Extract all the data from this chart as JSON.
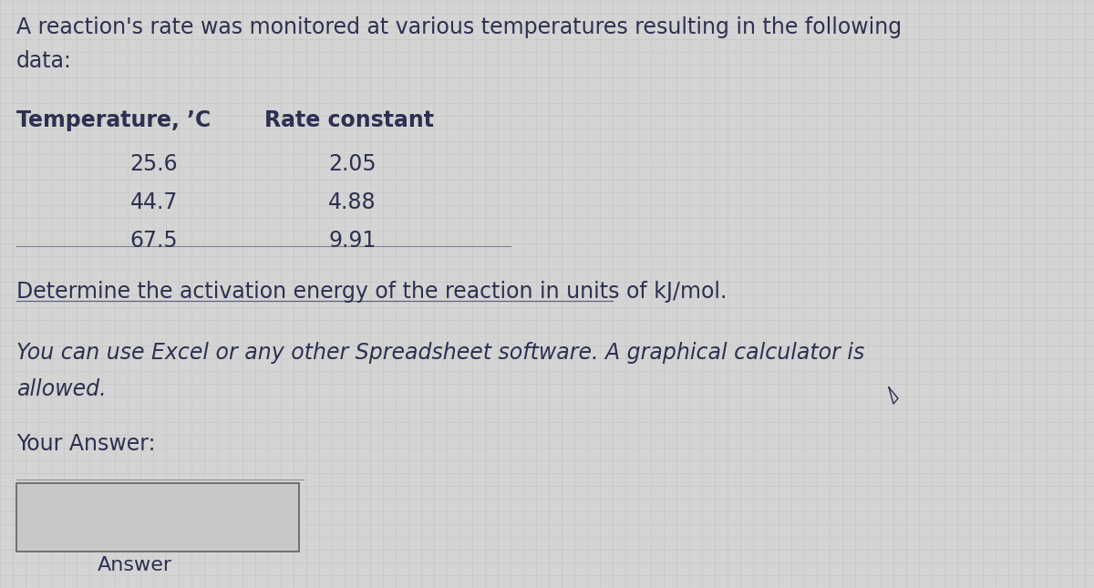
{
  "bg_color_light": "#d4d4d4",
  "bg_color_dark": "#b8b8b8",
  "text_color": "#2d3050",
  "title_line1": "A reaction's rate was monitored at various temperatures resulting in the following",
  "title_line2": "data:",
  "col_header1": "Temperature, ’C",
  "col_header2": "Rate constant",
  "table_data": [
    [
      "25.6",
      "2.05"
    ],
    [
      "44.7",
      "4.88"
    ],
    [
      "67.5",
      "9.91"
    ]
  ],
  "question_text": "Determine the activation energy of the reaction in units of kJ/mol.",
  "note_line1": "You can use Excel or any other Spreadsheet software. A graphical calculator is",
  "note_line2": "allowed.",
  "your_answer_label": "Your Answer:",
  "answer_button_text": "Answer",
  "grid_color": "#bbbbbb",
  "grid_alpha": 0.6
}
